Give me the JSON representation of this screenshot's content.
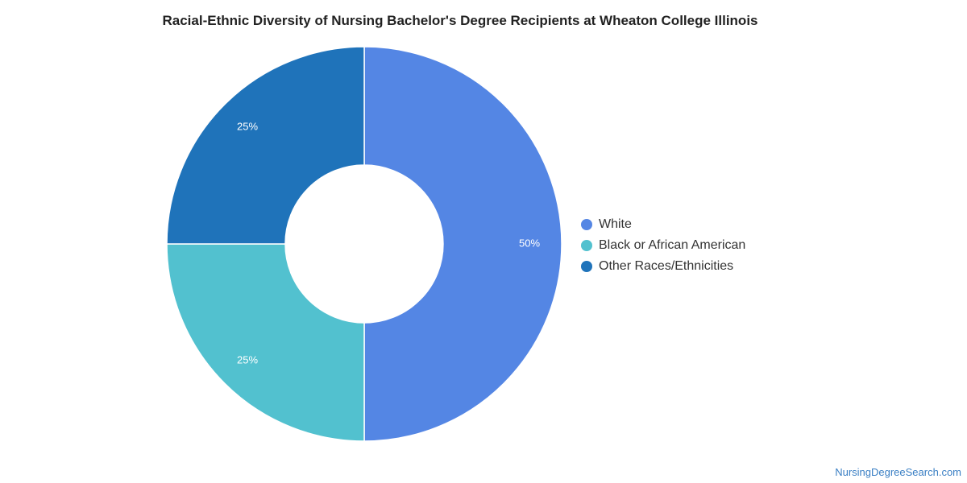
{
  "chart_data": {
    "type": "pie",
    "title": "Racial-Ethnic Diversity of Nursing Bachelor's Degree Recipients at Wheaton College Illinois",
    "slices": [
      {
        "name": "White",
        "value": 50,
        "label": "50%",
        "color": "#5486e4"
      },
      {
        "name": "Black or African American",
        "value": 25,
        "label": "25%",
        "color": "#52c1cf"
      },
      {
        "name": "Other Races/Ethnicities",
        "value": 25,
        "label": "25%",
        "color": "#1f73ba"
      }
    ],
    "donut": true,
    "legend_position": "right"
  },
  "footer": {
    "source": "NursingDegreeSearch.com"
  }
}
